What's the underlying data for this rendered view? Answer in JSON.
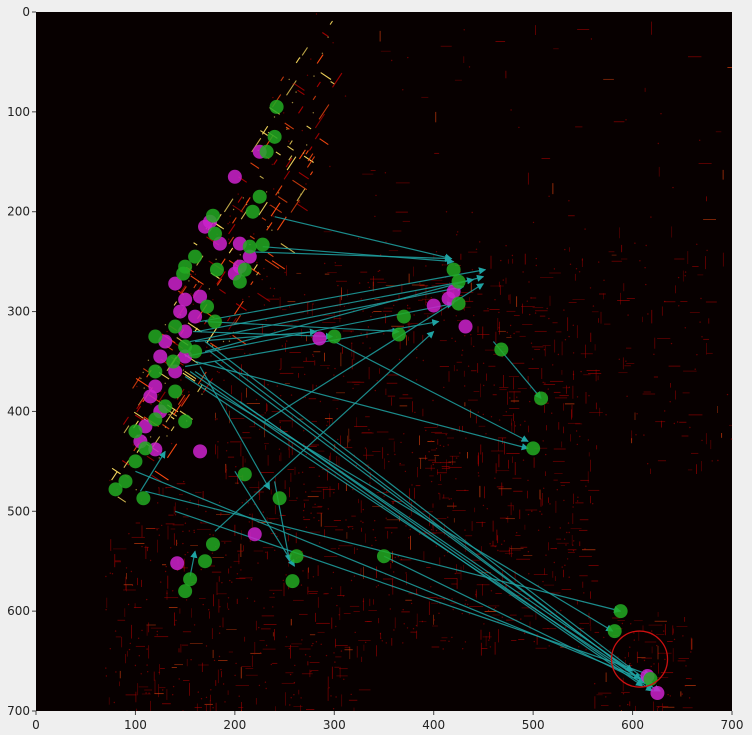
{
  "chart_data": {
    "type": "scatter",
    "title": "",
    "xlabel": "",
    "ylabel": "",
    "xlim": [
      0,
      700
    ],
    "ylim": [
      700,
      0
    ],
    "y_inverted": true,
    "grid": false,
    "legend": "none",
    "x_ticks": [
      0,
      100,
      200,
      300,
      400,
      500,
      600,
      700
    ],
    "y_ticks": [
      0,
      100,
      200,
      300,
      400,
      500,
      600,
      700
    ],
    "x_tick_labels": [
      "0",
      "100",
      "200",
      "300",
      "400",
      "500",
      "600",
      "700"
    ],
    "y_tick_labels": [
      "0",
      "100",
      "200",
      "300",
      "400",
      "500",
      "600",
      "700"
    ],
    "background_image": "heatmap of New York City taxi trip density (dark background, red/orange/yellow streets)",
    "colors": {
      "plot_background": "#070000",
      "figure_background": "#efefef",
      "pickup_points": "#cc22cc",
      "dropoff_points": "#22aa22",
      "arrows": "#1fa3a3",
      "heat_low": "#b00000",
      "heat_mid": "#ff4a10",
      "heat_high": "#ffe060"
    },
    "series": [
      {
        "kind": "pickup",
        "color": "#cc22cc",
        "points": [
          [
            225,
            140
          ],
          [
            200,
            165
          ],
          [
            170,
            215
          ],
          [
            175,
            210
          ],
          [
            205,
            232
          ],
          [
            185,
            232
          ],
          [
            215,
            245
          ],
          [
            205,
            255
          ],
          [
            200,
            262
          ],
          [
            140,
            272
          ],
          [
            150,
            288
          ],
          [
            165,
            285
          ],
          [
            145,
            300
          ],
          [
            160,
            305
          ],
          [
            150,
            320
          ],
          [
            130,
            330
          ],
          [
            125,
            345
          ],
          [
            150,
            345
          ],
          [
            140,
            360
          ],
          [
            120,
            375
          ],
          [
            115,
            385
          ],
          [
            125,
            400
          ],
          [
            110,
            415
          ],
          [
            105,
            430
          ],
          [
            120,
            438
          ],
          [
            165,
            440
          ],
          [
            220,
            523
          ],
          [
            142,
            552
          ],
          [
            285,
            327
          ],
          [
            415,
            287
          ],
          [
            420,
            280
          ],
          [
            400,
            294
          ],
          [
            432,
            315
          ],
          [
            615,
            665
          ],
          [
            625,
            682
          ]
        ]
      },
      {
        "kind": "dropoff",
        "color": "#22aa22",
        "points": [
          [
            242,
            95
          ],
          [
            240,
            125
          ],
          [
            232,
            140
          ],
          [
            225,
            185
          ],
          [
            218,
            200
          ],
          [
            178,
            204
          ],
          [
            180,
            222
          ],
          [
            228,
            233
          ],
          [
            215,
            235
          ],
          [
            160,
            245
          ],
          [
            150,
            255
          ],
          [
            148,
            262
          ],
          [
            182,
            258
          ],
          [
            205,
            270
          ],
          [
            210,
            258
          ],
          [
            172,
            295
          ],
          [
            180,
            310
          ],
          [
            140,
            315
          ],
          [
            120,
            325
          ],
          [
            150,
            335
          ],
          [
            160,
            340
          ],
          [
            138,
            350
          ],
          [
            120,
            360
          ],
          [
            140,
            380
          ],
          [
            130,
            395
          ],
          [
            150,
            410
          ],
          [
            120,
            408
          ],
          [
            100,
            420
          ],
          [
            110,
            437
          ],
          [
            100,
            450
          ],
          [
            90,
            470
          ],
          [
            80,
            478
          ],
          [
            108,
            487
          ],
          [
            210,
            463
          ],
          [
            245,
            487
          ],
          [
            178,
            533
          ],
          [
            170,
            550
          ],
          [
            262,
            545
          ],
          [
            155,
            568
          ],
          [
            150,
            580
          ],
          [
            258,
            570
          ],
          [
            350,
            545
          ],
          [
            300,
            325
          ],
          [
            370,
            305
          ],
          [
            365,
            323
          ],
          [
            420,
            258
          ],
          [
            425,
            270
          ],
          [
            425,
            292
          ],
          [
            468,
            338
          ],
          [
            500,
            437
          ],
          [
            508,
            387
          ],
          [
            588,
            600
          ],
          [
            582,
            620
          ],
          [
            618,
            668
          ]
        ]
      }
    ],
    "arrows": [
      [
        240,
        205,
        418,
        247
      ],
      [
        165,
        310,
        452,
        258
      ],
      [
        162,
        320,
        440,
        268
      ],
      [
        155,
        330,
        430,
        275
      ],
      [
        170,
        340,
        450,
        265
      ],
      [
        150,
        345,
        420,
        292
      ],
      [
        150,
        355,
        405,
        310
      ],
      [
        170,
        310,
        365,
        320
      ],
      [
        158,
        320,
        298,
        325
      ],
      [
        160,
        330,
        282,
        320
      ],
      [
        160,
        350,
        495,
        437
      ],
      [
        165,
        355,
        235,
        478
      ],
      [
        160,
        360,
        600,
        660
      ],
      [
        170,
        330,
        615,
        670
      ],
      [
        175,
        340,
        612,
        672
      ],
      [
        180,
        350,
        608,
        668
      ],
      [
        155,
        360,
        610,
        675
      ],
      [
        150,
        365,
        620,
        676
      ],
      [
        165,
        372,
        580,
        620
      ],
      [
        205,
        390,
        620,
        680
      ],
      [
        100,
        460,
        620,
        672
      ],
      [
        110,
        480,
        588,
        600
      ],
      [
        140,
        500,
        618,
        664
      ],
      [
        350,
        545,
        628,
        680
      ],
      [
        230,
        410,
        450,
        272
      ],
      [
        180,
        520,
        400,
        320
      ],
      [
        300,
        330,
        495,
        430
      ],
      [
        460,
        330,
        508,
        387
      ],
      [
        200,
        460,
        260,
        555
      ],
      [
        155,
        565,
        160,
        540
      ],
      [
        240,
        470,
        255,
        550
      ],
      [
        210,
        240,
        418,
        247
      ],
      [
        228,
        235,
        420,
        250
      ],
      [
        105,
        480,
        130,
        440
      ]
    ]
  }
}
